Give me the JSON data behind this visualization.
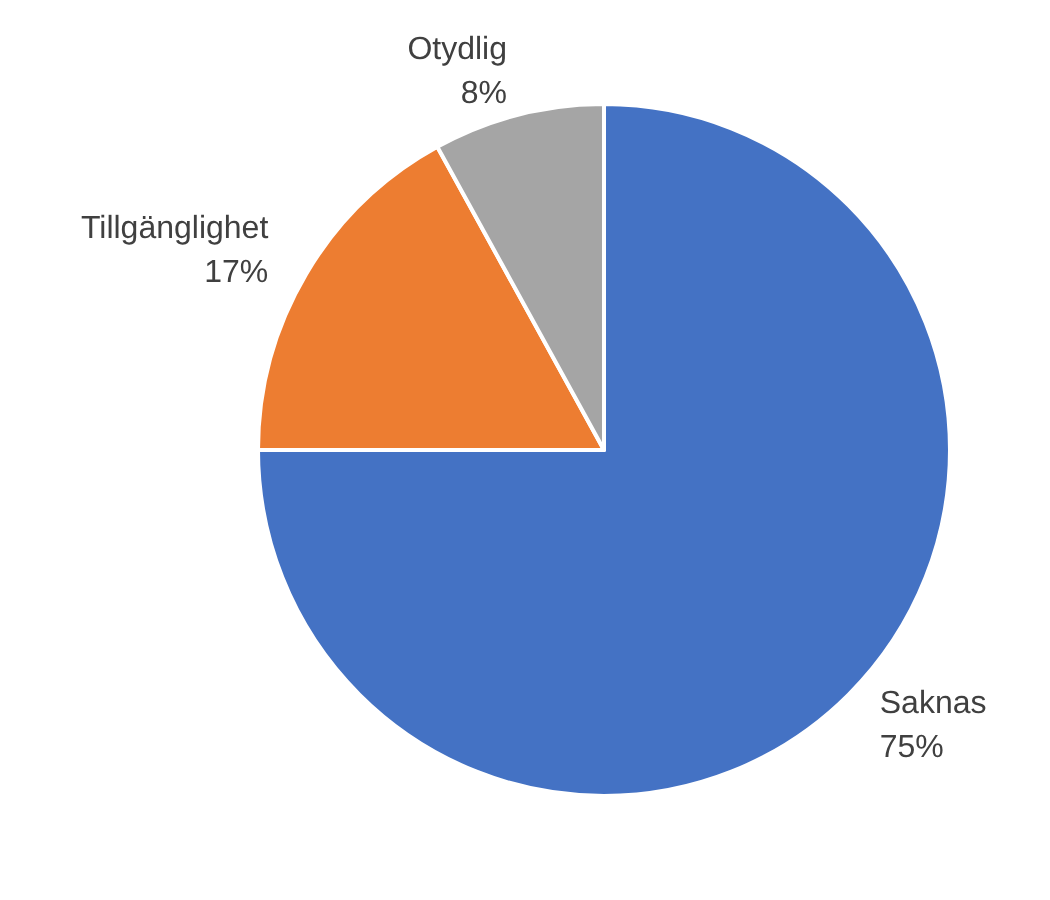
{
  "chart_data": {
    "type": "pie",
    "categories": [
      "Saknas",
      "Tillgänglighet",
      "Otydlig"
    ],
    "values": [
      75,
      17,
      8
    ],
    "value_labels": [
      "75%",
      "17%",
      "8%"
    ],
    "colors": [
      "#4472c4",
      "#ed7d31",
      "#a5a5a5"
    ],
    "legend": false
  }
}
